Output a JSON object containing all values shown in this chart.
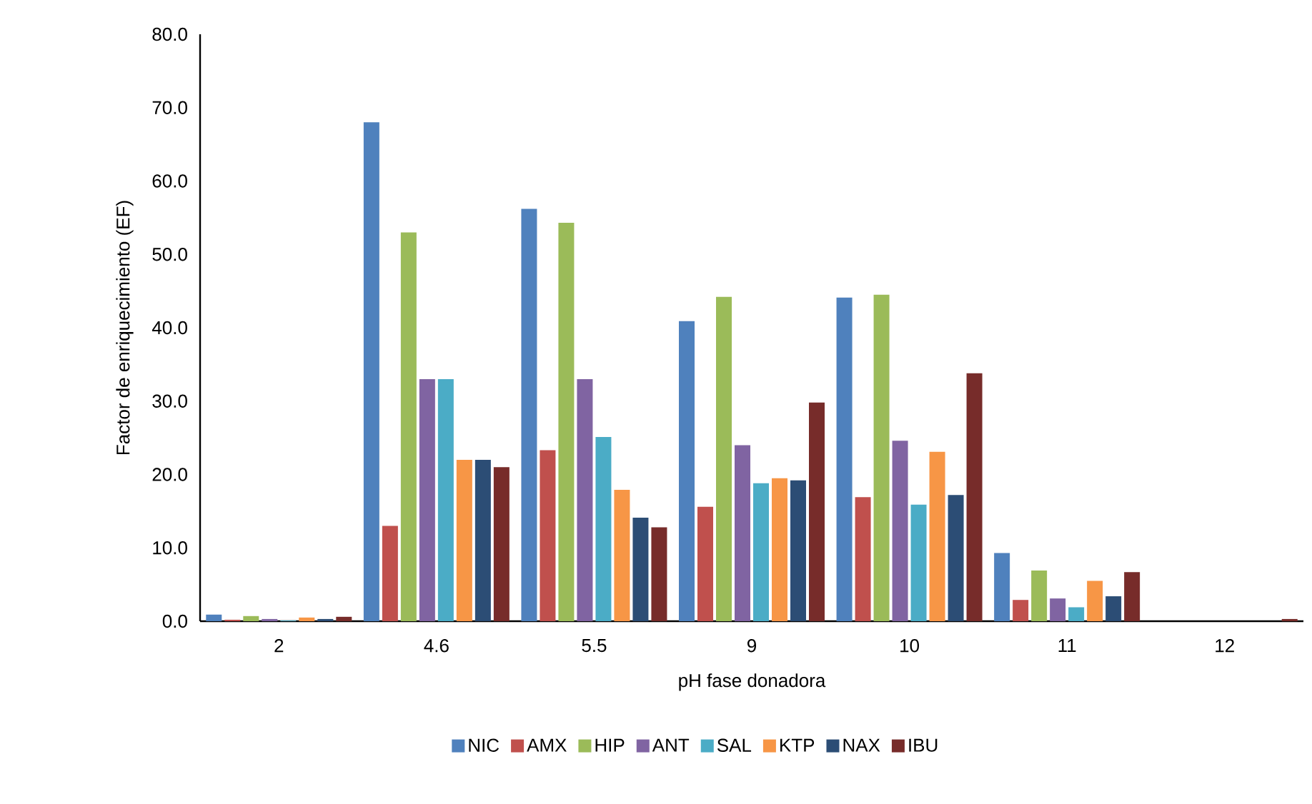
{
  "chart_data": {
    "type": "bar",
    "xlabel": "pH fase donadora",
    "ylabel": "Factor de enriquecimiento (EF)",
    "categories": [
      "2",
      "4.6",
      "5.5",
      "9",
      "10",
      "11",
      "12"
    ],
    "series": [
      {
        "name": "NIC",
        "color": "#4f81bd",
        "values": [
          0.9,
          68.0,
          56.2,
          40.9,
          44.1,
          9.3,
          0
        ]
      },
      {
        "name": "AMX",
        "color": "#c0504d",
        "values": [
          0.2,
          13.0,
          23.3,
          15.6,
          16.9,
          2.9,
          0
        ]
      },
      {
        "name": "HIP",
        "color": "#9bbb59",
        "values": [
          0.7,
          53.0,
          54.3,
          44.2,
          44.5,
          6.9,
          0
        ]
      },
      {
        "name": "ANT",
        "color": "#8064a2",
        "values": [
          0.3,
          33.0,
          33.0,
          24.0,
          24.6,
          3.1,
          0
        ]
      },
      {
        "name": "SAL",
        "color": "#4bacc6",
        "values": [
          0.1,
          33.0,
          25.1,
          18.8,
          15.9,
          1.9,
          0
        ]
      },
      {
        "name": "KTP",
        "color": "#f79646",
        "values": [
          0.5,
          22.0,
          17.9,
          19.5,
          23.1,
          5.5,
          0
        ]
      },
      {
        "name": "NAX",
        "color": "#2c4d75",
        "values": [
          0.3,
          22.0,
          14.1,
          19.2,
          17.2,
          3.4,
          0
        ]
      },
      {
        "name": "IBU",
        "color": "#772c2a",
        "values": [
          0.6,
          21.0,
          12.8,
          29.8,
          33.8,
          6.7,
          0.3
        ]
      }
    ],
    "ylim": [
      0,
      80
    ],
    "yticks": [
      {
        "value": 0,
        "label": "0.0"
      },
      {
        "value": 10,
        "label": "10.0"
      },
      {
        "value": 20,
        "label": "20.0"
      },
      {
        "value": 30,
        "label": "30.0"
      },
      {
        "value": 40,
        "label": "40.0"
      },
      {
        "value": 50,
        "label": "50.0"
      },
      {
        "value": 60,
        "label": "60.0"
      },
      {
        "value": 70,
        "label": "70.0"
      },
      {
        "value": 80,
        "label": "80.0"
      }
    ],
    "grid": false,
    "legend": "bottom"
  }
}
